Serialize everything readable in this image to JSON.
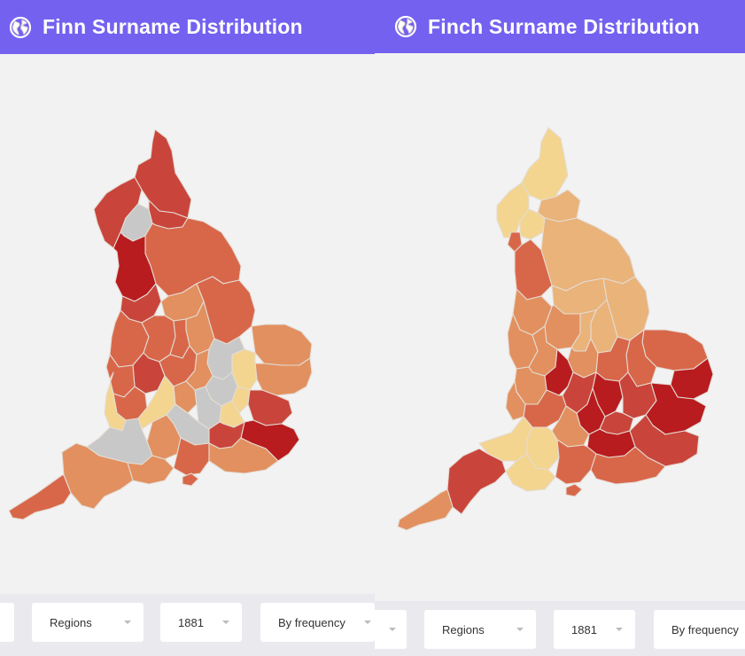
{
  "panels": [
    {
      "title": "Finn Surname Distribution",
      "icon": "globe-icon",
      "controls": {
        "region": "Regions",
        "year": "1881",
        "mode": "By frequency"
      }
    },
    {
      "title": "Finch Surname Distribution",
      "icon": "globe-icon",
      "controls": {
        "region": "Regions",
        "year": "1881",
        "mode": "By frequency"
      }
    }
  ],
  "colors": {
    "header": "#7461f0",
    "very_high": "#b81c1f",
    "high": "#c9453b",
    "medium_high": "#d8674a",
    "medium": "#e2905f",
    "medium_low": "#eab37a",
    "low": "#f3d590",
    "no_data": "#c8c8c8",
    "background": "#f2f2f2"
  }
}
